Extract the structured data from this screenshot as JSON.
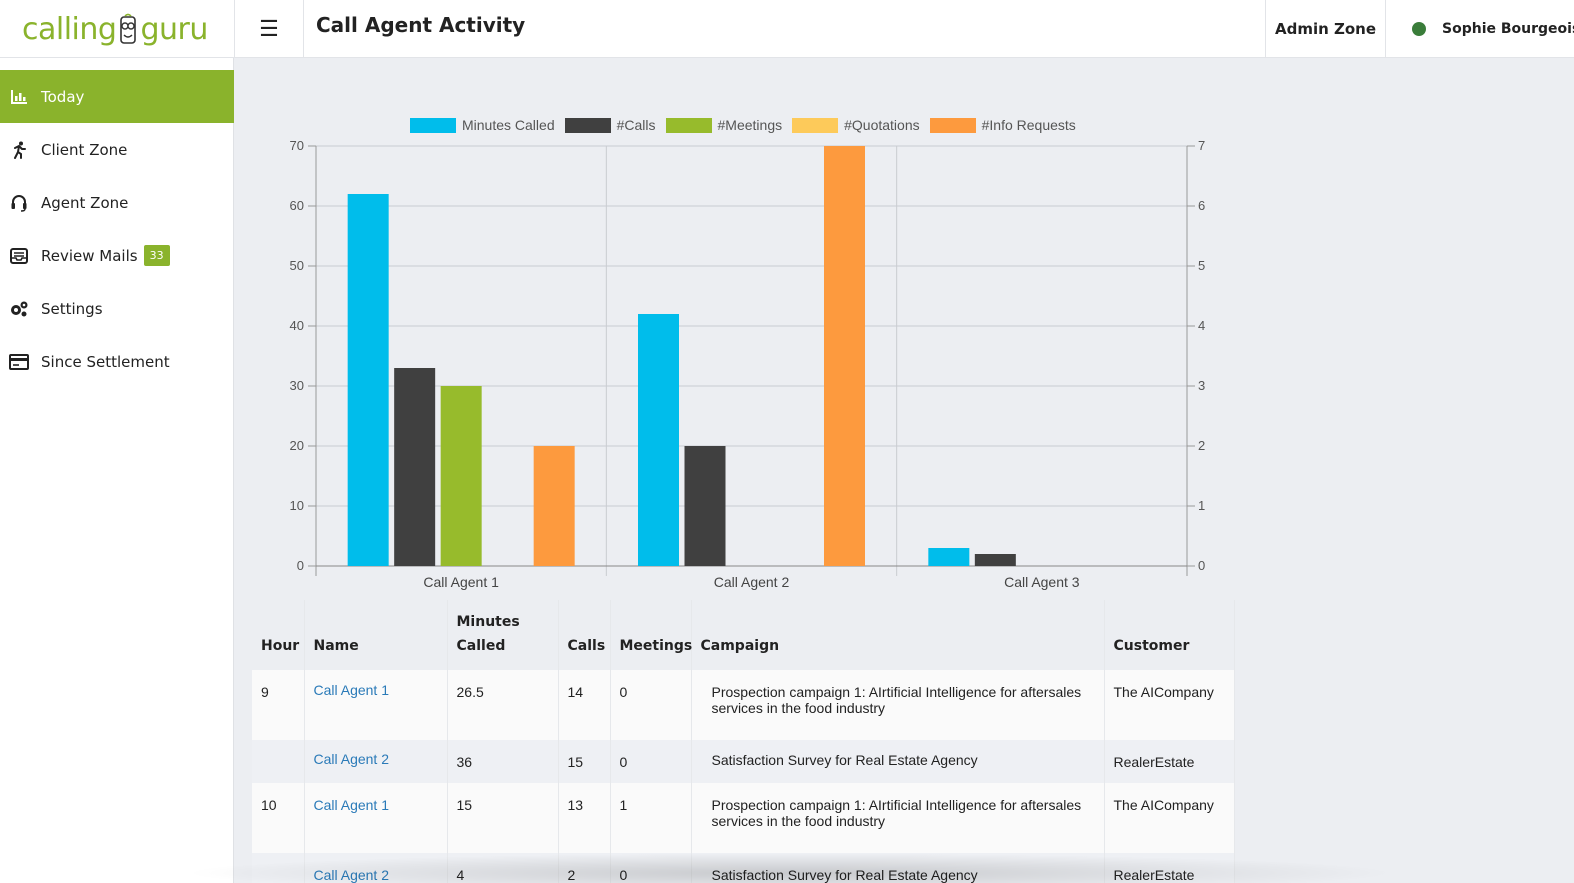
{
  "header": {
    "logo_left": "calling",
    "logo_right": "guru",
    "menu_icon": "☰",
    "page_title": "Call Agent Activity",
    "admin_zone": "Admin Zone",
    "user_name": "Sophie Bourgeois",
    "user_status_color": "#3a7d3a"
  },
  "sidebar": {
    "items": [
      {
        "label": "Today",
        "icon": "bar-chart-icon",
        "active": true
      },
      {
        "label": "Client Zone",
        "icon": "running-person-icon"
      },
      {
        "label": "Agent Zone",
        "icon": "headset-icon"
      },
      {
        "label": "Review Mails",
        "icon": "mail-inbox-icon",
        "badge": "33"
      },
      {
        "label": "Settings",
        "icon": "gears-icon"
      },
      {
        "label": "Since Settlement",
        "icon": "card-icon"
      }
    ]
  },
  "chart_data": {
    "type": "bar",
    "categories": [
      "Call Agent 1",
      "Call Agent 2",
      "Call Agent 3"
    ],
    "ylim": [
      0,
      70
    ],
    "y2lim": [
      0,
      7
    ],
    "y_ticks": [
      "0",
      "10",
      "20",
      "30",
      "40",
      "50",
      "60",
      "70"
    ],
    "y2_ticks": [
      "0",
      "1",
      "2",
      "3",
      "4",
      "5",
      "6",
      "7"
    ],
    "legend_position": "top-center",
    "grid": true,
    "series": [
      {
        "name": "Minutes Called",
        "color": "#00bdeb",
        "axis": "left",
        "values": [
          62,
          42,
          3
        ]
      },
      {
        "name": "#Calls",
        "color": "#404040",
        "axis": "left",
        "values": [
          33,
          20,
          2
        ]
      },
      {
        "name": "#Meetings",
        "color": "#97bb2c",
        "axis": "right",
        "values": [
          3,
          0,
          0
        ]
      },
      {
        "name": "#Quotations",
        "color": "#fdca5a",
        "axis": "right",
        "values": [
          0,
          0,
          0
        ]
      },
      {
        "name": "#Info Requests",
        "color": "#fd9a3e",
        "axis": "right",
        "values": [
          2,
          7,
          0
        ]
      }
    ]
  },
  "table": {
    "headers": {
      "hour": "Hour",
      "name": "Name",
      "minutes_1": "Minutes",
      "minutes_2": "Called",
      "calls": "Calls",
      "meetings": "Meetings",
      "campaign": "Campaign",
      "customer": "Customer"
    },
    "rows": [
      {
        "hour": "9",
        "name": "Call Agent 1",
        "minutes": "26.5",
        "calls": "14",
        "meetings": "0",
        "campaign": "Prospection campaign 1: AIrtificial Intelligence for aftersales services in the food industry",
        "customer": "The AICompany"
      },
      {
        "hour": "",
        "name": "Call Agent 2",
        "minutes": "36",
        "calls": "15",
        "meetings": "0",
        "campaign": "Satisfaction Survey for Real Estate Agency",
        "customer": "RealerEstate"
      },
      {
        "hour": "10",
        "name": "Call Agent 1",
        "minutes": "15",
        "calls": "13",
        "meetings": "1",
        "campaign": "Prospection campaign 1: AIrtificial Intelligence for aftersales services in the food industry",
        "customer": "The AICompany"
      },
      {
        "hour": "",
        "name": "Call Agent 2",
        "minutes": "4",
        "calls": "2",
        "meetings": "0",
        "campaign": "Satisfaction Survey for Real Estate Agency",
        "customer": "RealerEstate"
      }
    ]
  }
}
